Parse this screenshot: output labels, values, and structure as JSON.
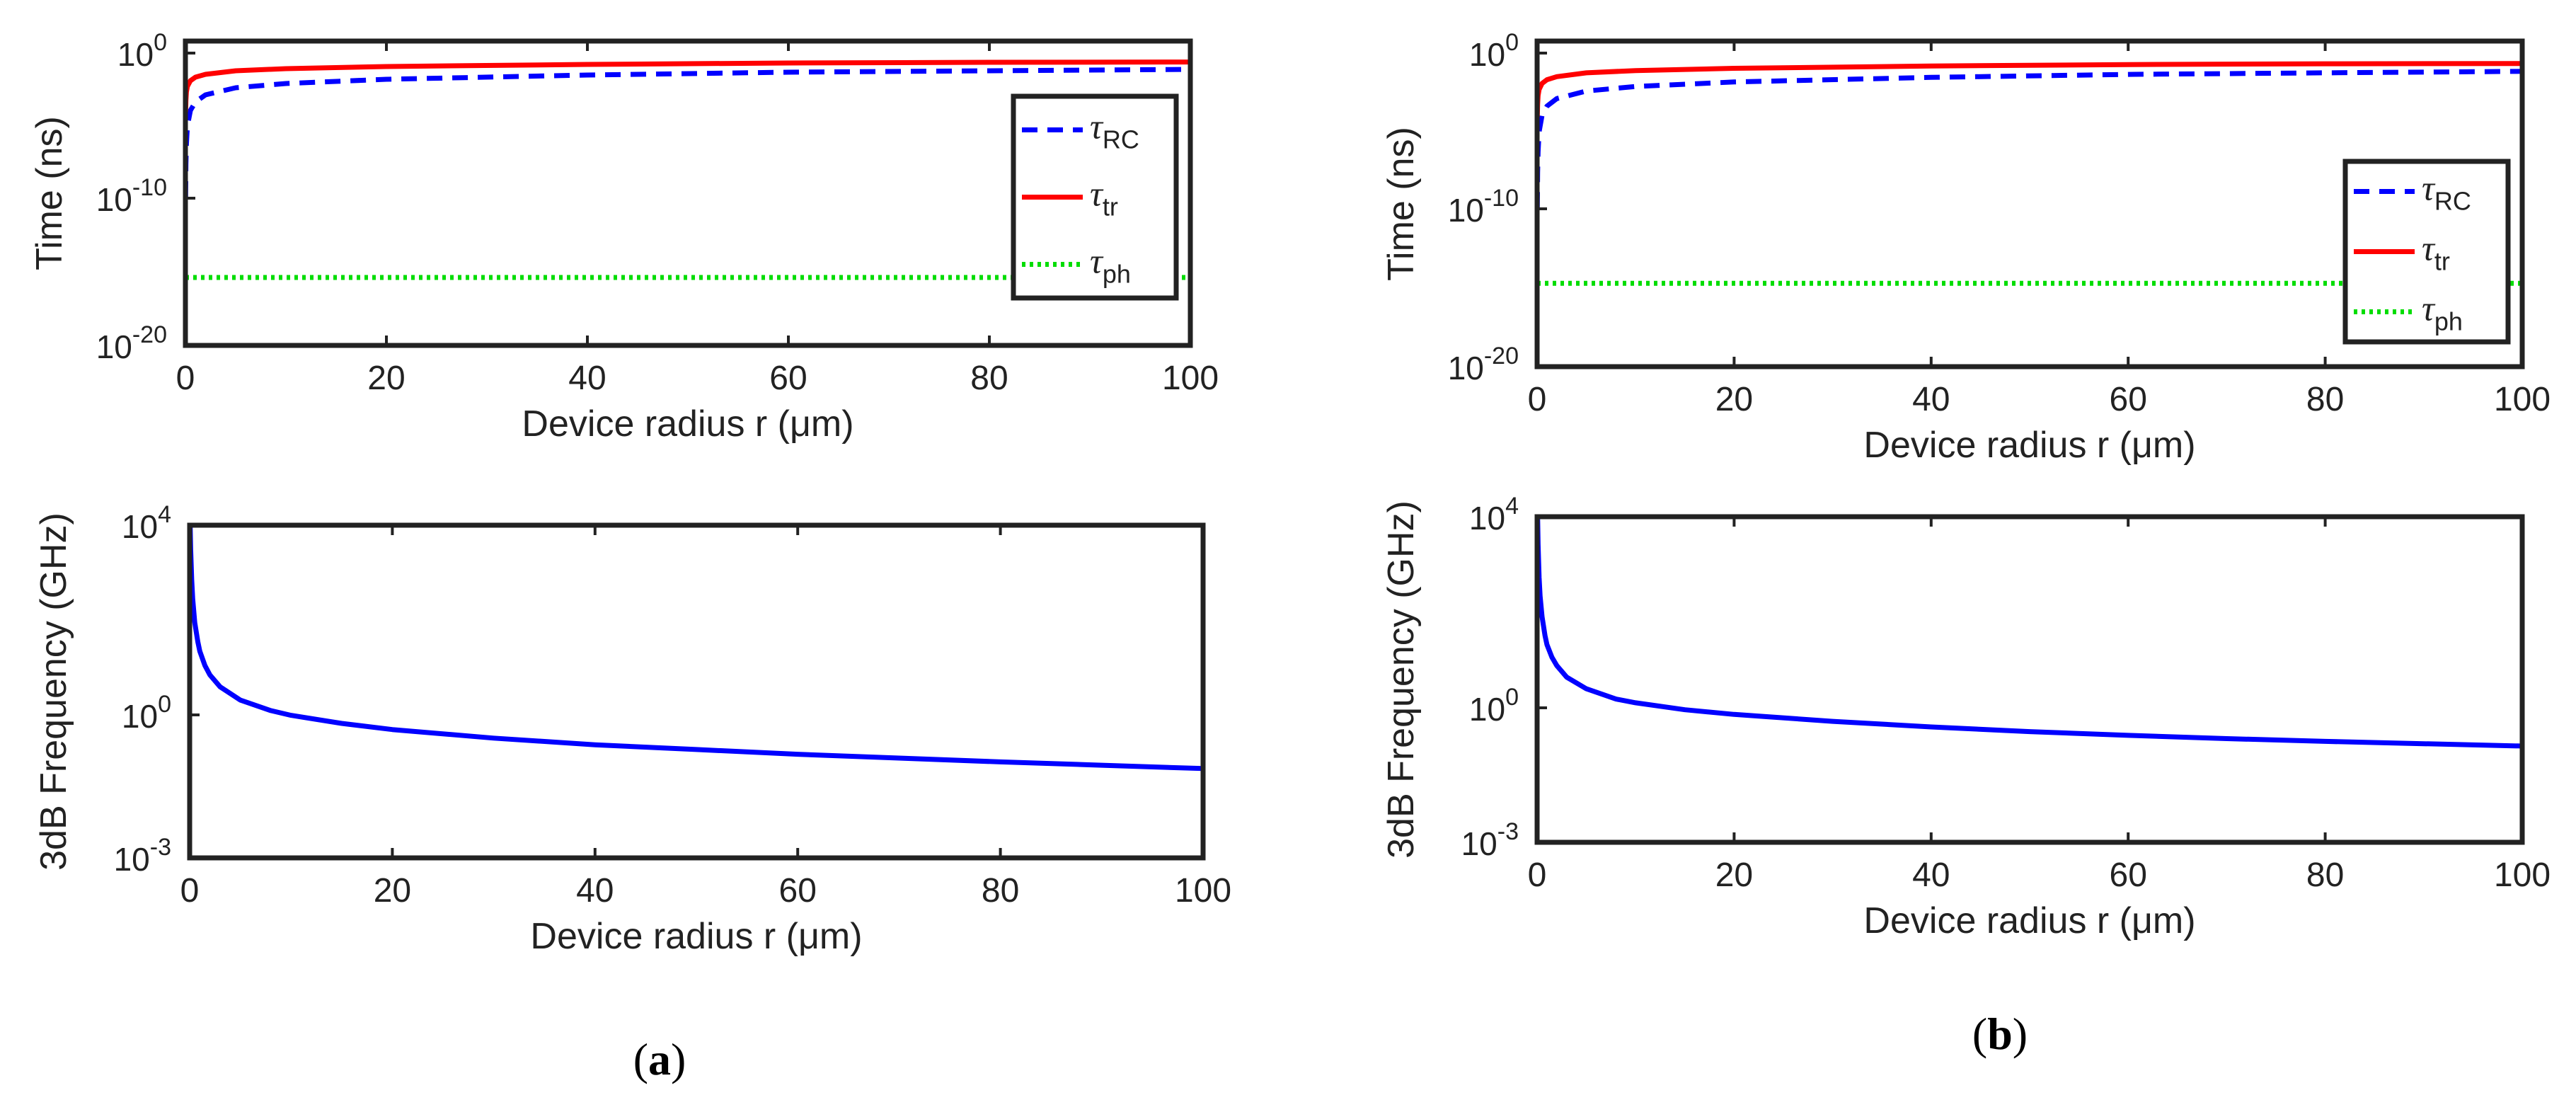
{
  "figure": {
    "panel_a_label": "a",
    "panel_b_label": "b"
  },
  "colors": {
    "tau_rc": "#0000ff",
    "tau_tr": "#ff0000",
    "tau_ph": "#00dd00",
    "f3db": "#0000ff",
    "axis": "#222222"
  },
  "chart_data": [
    {
      "id": "a-top",
      "panel": "a",
      "type": "line",
      "title": "",
      "xlabel": "Device radius r (μm)",
      "ylabel": "Time (ns)",
      "xscale": "linear",
      "yscale": "log",
      "xlim": [
        0,
        100
      ],
      "ylim_exp": [
        -20,
        1.5
      ],
      "xticks": [
        "0",
        "20",
        "40",
        "60",
        "80",
        "100"
      ],
      "yticks_exp": [
        "0",
        "-10",
        "-20"
      ],
      "ytick_base": "10",
      "legend_position": "right",
      "legend": [
        {
          "symbol": "τ",
          "sub": "RC",
          "key": "tau_rc",
          "style": "dashed"
        },
        {
          "symbol": "τ",
          "sub": "tr",
          "key": "tau_tr",
          "style": "solid"
        },
        {
          "symbol": "τ",
          "sub": "ph",
          "key": "tau_ph",
          "style": "dotted"
        }
      ],
      "series": [
        {
          "name": "tau_RC",
          "color_key": "tau_rc",
          "style": "dashed",
          "x": [
            0.02,
            0.05,
            0.1,
            0.2,
            0.5,
            1,
            2,
            5,
            10,
            20,
            40,
            60,
            80,
            100
          ],
          "log_y": [
            -9.5,
            -7.2,
            -5.8,
            -4.5,
            -3.4,
            -2.8,
            -2.3,
            -1.8,
            -1.5,
            -1.2,
            -0.9,
            -0.7,
            -0.6,
            -0.5
          ]
        },
        {
          "name": "tau_tr",
          "color_key": "tau_tr",
          "style": "solid",
          "x": [
            0.02,
            0.05,
            0.1,
            0.2,
            0.5,
            1,
            2,
            5,
            10,
            20,
            40,
            60,
            80,
            100
          ],
          "log_y": [
            -3.5,
            -2.7,
            -2.1,
            -1.7,
            -1.3,
            -1.05,
            -0.85,
            -0.6,
            -0.45,
            -0.3,
            -0.15,
            -0.05,
            0.0,
            0.02
          ]
        },
        {
          "name": "tau_ph",
          "color_key": "tau_ph",
          "style": "dotted",
          "x": [
            0,
            100
          ],
          "log_y": [
            -15.2,
            -15.2
          ]
        }
      ]
    },
    {
      "id": "a-bottom",
      "panel": "a",
      "type": "line",
      "title": "",
      "xlabel": "Device radius r (μm)",
      "ylabel": "3dB Frequency (GHz)",
      "xscale": "linear",
      "yscale": "log",
      "xlim": [
        0,
        100
      ],
      "ylim_exp": [
        -3,
        4
      ],
      "xticks": [
        "0",
        "20",
        "40",
        "60",
        "80",
        "100"
      ],
      "yticks_exp": [
        "4",
        "0",
        "-3"
      ],
      "ytick_base": "10",
      "series": [
        {
          "name": "f_3dB",
          "color_key": "f3db",
          "style": "solid",
          "x": [
            0.05,
            0.1,
            0.2,
            0.3,
            0.5,
            0.8,
            1,
            1.5,
            2,
            3,
            5,
            8,
            10,
            15,
            20,
            30,
            40,
            50,
            60,
            70,
            80,
            90,
            100
          ],
          "log_y": [
            4,
            3.5,
            2.85,
            2.45,
            1.95,
            1.55,
            1.35,
            1.05,
            0.85,
            0.6,
            0.32,
            0.1,
            0.0,
            -0.17,
            -0.3,
            -0.48,
            -0.62,
            -0.72,
            -0.82,
            -0.9,
            -0.98,
            -1.05,
            -1.12
          ]
        }
      ]
    },
    {
      "id": "b-top",
      "panel": "b",
      "type": "line",
      "title": "",
      "xlabel": "Device radius r (μm)",
      "ylabel": "Time (ns)",
      "xscale": "linear",
      "yscale": "log",
      "xlim": [
        0,
        100
      ],
      "ylim_exp": [
        -20,
        1.5
      ],
      "xticks": [
        "0",
        "20",
        "40",
        "60",
        "80",
        "100"
      ],
      "yticks_exp": [
        "0",
        "-10",
        "-20"
      ],
      "ytick_base": "10",
      "legend_position": "right",
      "legend": [
        {
          "symbol": "τ",
          "sub": "RC",
          "key": "tau_rc",
          "style": "dashed"
        },
        {
          "symbol": "τ",
          "sub": "tr",
          "key": "tau_tr",
          "style": "solid"
        },
        {
          "symbol": "τ",
          "sub": "ph",
          "key": "tau_ph",
          "style": "dotted"
        }
      ],
      "series": [
        {
          "name": "tau_RC",
          "color_key": "tau_rc",
          "style": "dashed",
          "x": [
            0.02,
            0.05,
            0.1,
            0.2,
            0.5,
            1,
            2,
            5,
            10,
            20,
            40,
            60,
            80,
            100
          ],
          "log_y": [
            -9.5,
            -7.2,
            -5.8,
            -4.5,
            -3.4,
            -2.8,
            -2.3,
            -1.8,
            -1.5,
            -1.2,
            -0.9,
            -0.7,
            -0.6,
            -0.5
          ]
        },
        {
          "name": "tau_tr",
          "color_key": "tau_tr",
          "style": "solid",
          "x": [
            0.02,
            0.05,
            0.1,
            0.2,
            0.5,
            1,
            2,
            5,
            10,
            20,
            40,
            60,
            80,
            100
          ],
          "log_y": [
            -3.5,
            -2.7,
            -2.1,
            -1.7,
            -1.3,
            -1.05,
            -0.85,
            -0.6,
            -0.45,
            -0.3,
            -0.15,
            -0.05,
            0.0,
            0.02
          ]
        },
        {
          "name": "tau_ph",
          "color_key": "tau_ph",
          "style": "dotted",
          "x": [
            0,
            100
          ],
          "log_y": [
            -14.5,
            -14.5
          ]
        }
      ]
    },
    {
      "id": "b-bottom",
      "panel": "b",
      "type": "line",
      "title": "",
      "xlabel": "Device radius r (μm)",
      "ylabel": "3dB Frequency (GHz)",
      "xscale": "linear",
      "yscale": "log",
      "xlim": [
        0,
        100
      ],
      "ylim_exp": [
        -3,
        4
      ],
      "xticks": [
        "0",
        "20",
        "40",
        "60",
        "80",
        "100"
      ],
      "yticks_exp": [
        "4",
        "0",
        "-3"
      ],
      "ytick_base": "10",
      "series": [
        {
          "name": "f_3dB",
          "color_key": "f3db",
          "style": "solid",
          "x": [
            0.05,
            0.1,
            0.2,
            0.3,
            0.5,
            0.8,
            1,
            1.5,
            2,
            3,
            5,
            8,
            10,
            15,
            20,
            30,
            40,
            50,
            60,
            70,
            80,
            90,
            100
          ],
          "log_y": [
            4,
            3.4,
            2.7,
            2.3,
            1.85,
            1.45,
            1.25,
            0.98,
            0.8,
            0.55,
            0.3,
            0.08,
            0.0,
            -0.15,
            -0.25,
            -0.4,
            -0.52,
            -0.62,
            -0.7,
            -0.77,
            -0.83,
            -0.88,
            -0.93
          ]
        }
      ]
    }
  ]
}
